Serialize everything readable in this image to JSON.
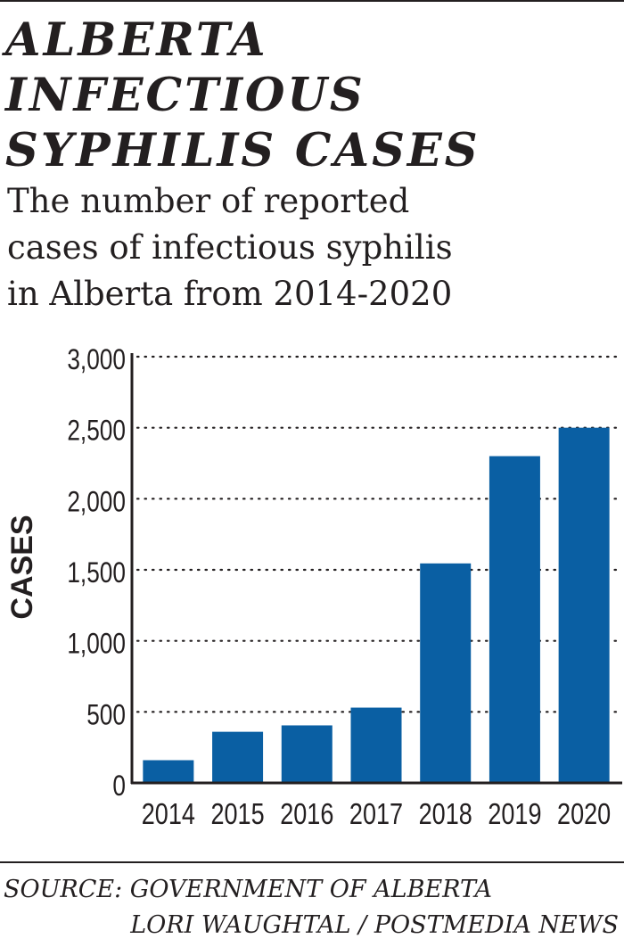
{
  "header": {
    "title": "ALBERTA\nINFECTIOUS\nSYPHILIS CASES",
    "subtitle": "The number of reported\ncases of infectious syphilis\nin Alberta from 2014-2020"
  },
  "footer": {
    "source": "SOURCE: GOVERNMENT OF ALBERTA",
    "credit": "LORI WAUGHTAL / POSTMEDIA NEWS"
  },
  "colors": {
    "bar": "#0a5fa3",
    "text": "#231f20",
    "grid": "#231f20"
  },
  "chart_data": {
    "type": "bar",
    "title": "ALBERTA INFECTIOUS SYPHILIS CASES",
    "subtitle": "The number of reported cases of infectious syphilis in Alberta from 2014-2020",
    "categories": [
      "2014",
      "2015",
      "2016",
      "2017",
      "2018",
      "2019",
      "2020"
    ],
    "values": [
      160,
      360,
      405,
      530,
      1545,
      2300,
      2500
    ],
    "xlabel": "",
    "ylabel": "CASES",
    "ylim": [
      0,
      3000
    ],
    "yticks": [
      0,
      500,
      1000,
      1500,
      2000,
      2500,
      3000
    ],
    "ytick_labels": [
      "0",
      "500",
      "1,000",
      "1,500",
      "2,000",
      "2,500",
      "3,000"
    ],
    "grid": "dotted horizontal",
    "legend": "none"
  }
}
